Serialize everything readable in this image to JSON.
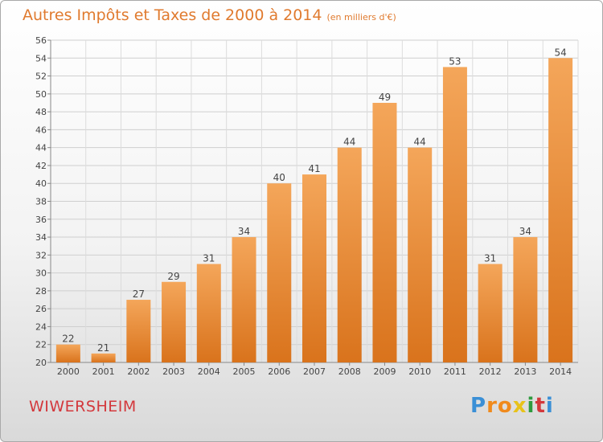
{
  "header": {
    "title": "Autres Impôts et Taxes de 2000 à 2014",
    "subtitle": "(en milliers d'€)"
  },
  "footer": {
    "city": "WIWERSHEIM",
    "brand": "Proxiti",
    "brand_letters": [
      "P",
      "r",
      "o",
      "x",
      "i",
      "t",
      "i"
    ]
  },
  "colors": {
    "accent": "#e07a2e",
    "bar_top": "#f4a65a",
    "bar_bottom": "#d9731c",
    "city": "#d3383c",
    "brand_letters": [
      "#3a8fd6",
      "#f08a1c",
      "#f08a1c",
      "#e8c21a",
      "#2e9a3e",
      "#d3383c",
      "#3a8fd6"
    ]
  },
  "chart_data": {
    "type": "bar",
    "title": "Autres Impôts et Taxes de 2000 à 2014",
    "subtitle": "(en milliers d'€)",
    "categories": [
      "2000",
      "2001",
      "2002",
      "2003",
      "2004",
      "2005",
      "2006",
      "2007",
      "2008",
      "2009",
      "2010",
      "2011",
      "2012",
      "2013",
      "2014"
    ],
    "values": [
      22,
      21,
      27,
      29,
      31,
      34,
      40,
      41,
      44,
      49,
      44,
      53,
      31,
      34,
      54
    ],
    "ylim": [
      20,
      56
    ],
    "yticks": [
      20,
      22,
      24,
      26,
      28,
      30,
      32,
      34,
      36,
      38,
      40,
      42,
      44,
      46,
      48,
      50,
      52,
      54,
      56
    ],
    "grid": true,
    "xlabel": "",
    "ylabel": ""
  }
}
